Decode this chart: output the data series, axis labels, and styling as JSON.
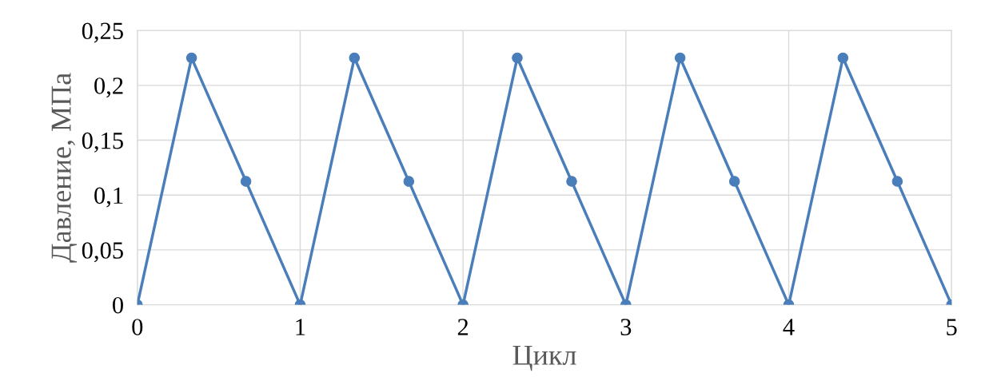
{
  "chart_data": {
    "type": "line",
    "xlabel": "Цикл",
    "ylabel": "Давление, МПа",
    "x": [
      0,
      0.333,
      0.667,
      1,
      1.333,
      1.667,
      2,
      2.333,
      2.667,
      3,
      3.333,
      3.667,
      4,
      4.333,
      4.667,
      5
    ],
    "series": [
      {
        "color": "#4a7ebb",
        "values": [
          0,
          0.225,
          0.1125,
          0,
          0.225,
          0.1125,
          0,
          0.225,
          0.1125,
          0,
          0.225,
          0.1125,
          0,
          0.225,
          0.1125,
          0
        ]
      }
    ],
    "xlim": [
      0,
      5
    ],
    "xticks": [
      0,
      1,
      2,
      3,
      4,
      5
    ],
    "ylim": [
      0,
      0.25
    ],
    "yticks": [
      {
        "value": 0,
        "label": "0"
      },
      {
        "value": 0.05,
        "label": "0,05"
      },
      {
        "value": 0.1,
        "label": "0,1"
      },
      {
        "value": 0.15,
        "label": "0,15"
      },
      {
        "value": 0.2,
        "label": "0,2"
      },
      {
        "value": 0.25,
        "label": "0,25"
      }
    ],
    "grid": true,
    "marker": "circle",
    "line_style": "solid"
  }
}
